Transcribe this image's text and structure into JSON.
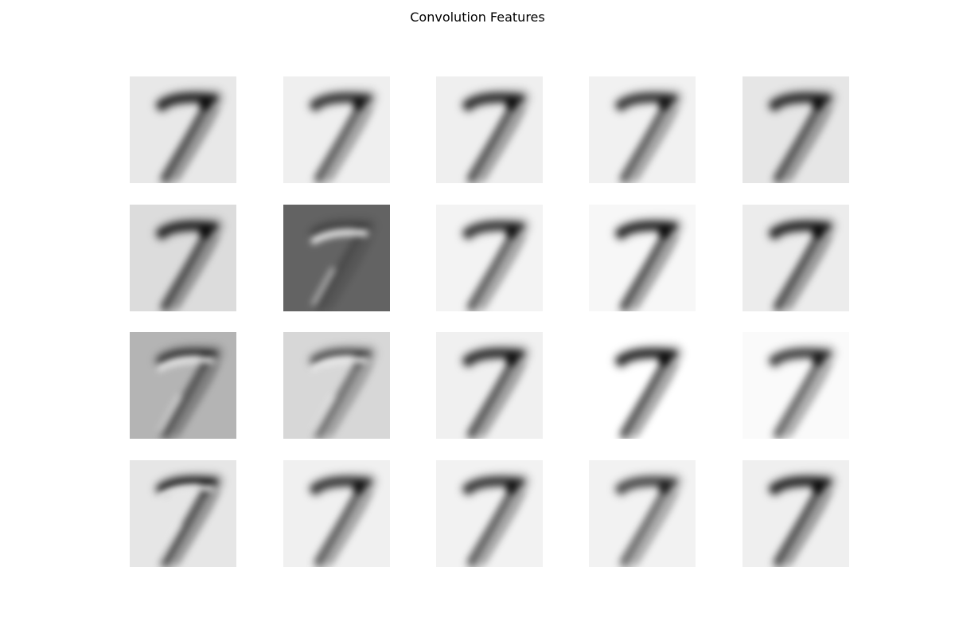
{
  "figure": {
    "title": "Convolution Features"
  },
  "panels": [
    {
      "name": "feature-map-1",
      "bg": "#e8e8e8",
      "shade": 1.0,
      "highlight": false
    },
    {
      "name": "feature-map-2",
      "bg": "#efefef",
      "shade": 0.9,
      "highlight": false
    },
    {
      "name": "feature-map-3",
      "bg": "#efefef",
      "shade": 0.95,
      "highlight": false
    },
    {
      "name": "feature-map-4",
      "bg": "#f1f1f1",
      "shade": 0.9,
      "highlight": false
    },
    {
      "name": "feature-map-5",
      "bg": "#e6e6e6",
      "shade": 0.95,
      "highlight": false
    },
    {
      "name": "feature-map-6",
      "bg": "#dcdcdc",
      "shade": 1.0,
      "highlight": false
    },
    {
      "name": "feature-map-7",
      "bg": "#636363",
      "shade": 0.35,
      "highlight": true
    },
    {
      "name": "feature-map-8",
      "bg": "#f3f3f3",
      "shade": 0.9,
      "highlight": false
    },
    {
      "name": "feature-map-9",
      "bg": "#f7f7f7",
      "shade": 1.0,
      "highlight": false
    },
    {
      "name": "feature-map-10",
      "bg": "#ececec",
      "shade": 1.0,
      "highlight": false
    },
    {
      "name": "feature-map-11",
      "bg": "#b4b4b4",
      "shade": 0.8,
      "highlight": true
    },
    {
      "name": "feature-map-12",
      "bg": "#d7d7d7",
      "shade": 0.7,
      "highlight": true
    },
    {
      "name": "feature-map-13",
      "bg": "#f0f0f0",
      "shade": 0.95,
      "highlight": false
    },
    {
      "name": "feature-map-14",
      "bg": "#ffffff",
      "shade": 1.0,
      "highlight": false
    },
    {
      "name": "feature-map-15",
      "bg": "#fafafa",
      "shade": 0.85,
      "highlight": false
    },
    {
      "name": "feature-map-16",
      "bg": "#e6e6e6",
      "shade": 1.0,
      "highlight": true
    },
    {
      "name": "feature-map-17",
      "bg": "#f0f0f0",
      "shade": 0.9,
      "highlight": false
    },
    {
      "name": "feature-map-18",
      "bg": "#f2f2f2",
      "shade": 0.9,
      "highlight": false
    },
    {
      "name": "feature-map-19",
      "bg": "#f2f2f2",
      "shade": 0.8,
      "highlight": false
    },
    {
      "name": "feature-map-20",
      "bg": "#efefef",
      "shade": 1.0,
      "highlight": false
    }
  ]
}
